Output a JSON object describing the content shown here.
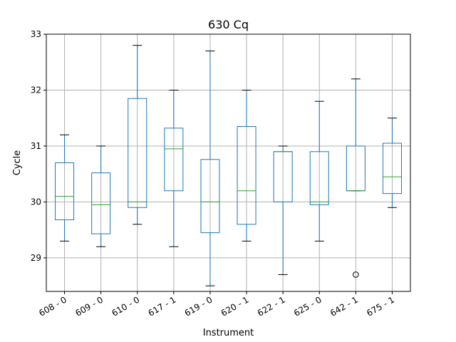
{
  "chart_data": {
    "type": "box",
    "title": "630 Cq",
    "xlabel": "Instrument",
    "ylabel": "Cycle",
    "ylim": [
      28.4,
      33.0
    ],
    "yticks": [
      29,
      30,
      31,
      32,
      33
    ],
    "grid": true,
    "categories": [
      "608 - 0",
      "609 - 0",
      "610 - 0",
      "617 - 1",
      "619 - 0",
      "620 - 1",
      "622 - 1",
      "625 - 0",
      "642 - 1",
      "675 - 1"
    ],
    "boxes": [
      {
        "whisker_low": 29.3,
        "q1": 29.68,
        "median": 30.1,
        "q3": 30.7,
        "whisker_high": 31.2,
        "outliers": []
      },
      {
        "whisker_low": 29.2,
        "q1": 29.43,
        "median": 29.95,
        "q3": 30.52,
        "whisker_high": 31.0,
        "outliers": []
      },
      {
        "whisker_low": 29.6,
        "q1": 29.9,
        "median": 30.0,
        "q3": 31.85,
        "whisker_high": 32.8,
        "outliers": []
      },
      {
        "whisker_low": 29.2,
        "q1": 30.2,
        "median": 30.95,
        "q3": 31.32,
        "whisker_high": 32.0,
        "outliers": []
      },
      {
        "whisker_low": 28.5,
        "q1": 29.45,
        "median": 30.0,
        "q3": 30.76,
        "whisker_high": 32.7,
        "outliers": []
      },
      {
        "whisker_low": 29.3,
        "q1": 29.6,
        "median": 30.2,
        "q3": 31.35,
        "whisker_high": 32.0,
        "outliers": []
      },
      {
        "whisker_low": 28.7,
        "q1": 30.0,
        "median": 30.9,
        "q3": 30.9,
        "whisker_high": 31.0,
        "outliers": []
      },
      {
        "whisker_low": 29.3,
        "q1": 29.95,
        "median": 30.0,
        "q3": 30.9,
        "whisker_high": 31.8,
        "outliers": []
      },
      {
        "whisker_low": 30.2,
        "q1": 30.2,
        "median": 30.2,
        "q3": 31.0,
        "whisker_high": 32.2,
        "outliers": [
          28.7
        ]
      },
      {
        "whisker_low": 29.9,
        "q1": 30.15,
        "median": 30.45,
        "q3": 31.05,
        "whisker_high": 31.5,
        "outliers": []
      }
    ],
    "colors": {
      "box": "#1f77b4",
      "median": "#2ca02c",
      "grid": "#b0b0b0",
      "outlier": "#000000",
      "axes": "#000000"
    }
  }
}
